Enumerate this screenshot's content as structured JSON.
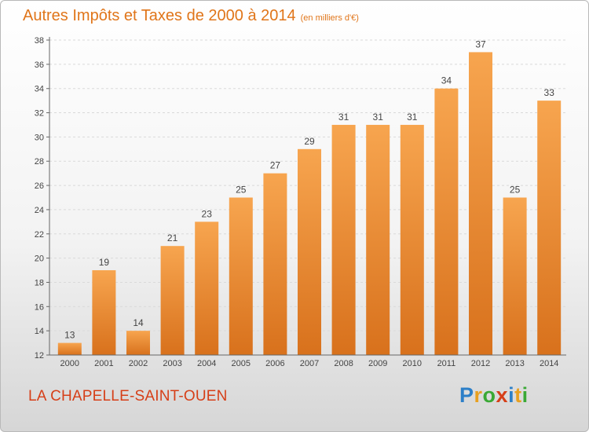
{
  "title": "Autres Impôts et Taxes de 2000 à 2014",
  "title_unit": "(en milliers d'€)",
  "commune": "LA CHAPELLE-SAINT-OUEN",
  "logo": {
    "text": "Proxiti",
    "letters": [
      "P",
      "r",
      "o",
      "x",
      "i",
      "t",
      "i"
    ],
    "colors": [
      "#2c7fc8",
      "#e8a020",
      "#3aa935",
      "#d63f18",
      "#2c7fc8",
      "#e8a020",
      "#3aa935"
    ]
  },
  "colors": {
    "title": "#e07519",
    "commune": "#d63f18",
    "bar_light": "#f7a54f",
    "bar_dark": "#d8711c"
  },
  "chart_data": {
    "type": "bar",
    "title": "Autres Impôts et Taxes de 2000 à 2014",
    "unit": "(en milliers d'€)",
    "categories": [
      "2000",
      "2001",
      "2002",
      "2003",
      "2004",
      "2005",
      "2006",
      "2007",
      "2008",
      "2009",
      "2010",
      "2011",
      "2012",
      "2013",
      "2014"
    ],
    "values": [
      13,
      19,
      14,
      21,
      23,
      25,
      27,
      29,
      31,
      31,
      31,
      34,
      37,
      25,
      33
    ],
    "ylim": [
      12,
      38
    ],
    "yticks": [
      12,
      14,
      16,
      18,
      20,
      22,
      24,
      26,
      28,
      30,
      32,
      34,
      36,
      38
    ],
    "grid": true,
    "xlabel": "",
    "ylabel": ""
  }
}
